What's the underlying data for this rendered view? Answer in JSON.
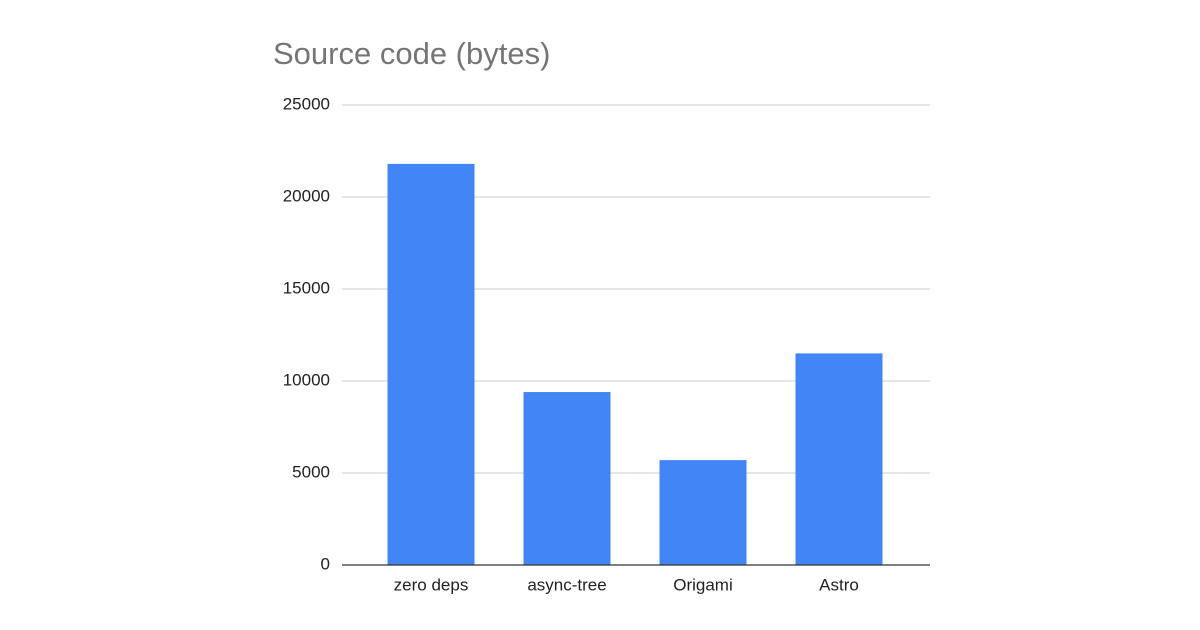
{
  "chart_data": {
    "type": "bar",
    "title": "Source code (bytes)",
    "categories": [
      "zero deps",
      "async-tree",
      "Origami",
      "Astro"
    ],
    "values": [
      21800,
      9400,
      5700,
      11500
    ],
    "color": "#4285f4",
    "ylim": [
      0,
      25000
    ],
    "yticks": [
      0,
      5000,
      10000,
      15000,
      20000,
      25000
    ],
    "grid": true
  }
}
